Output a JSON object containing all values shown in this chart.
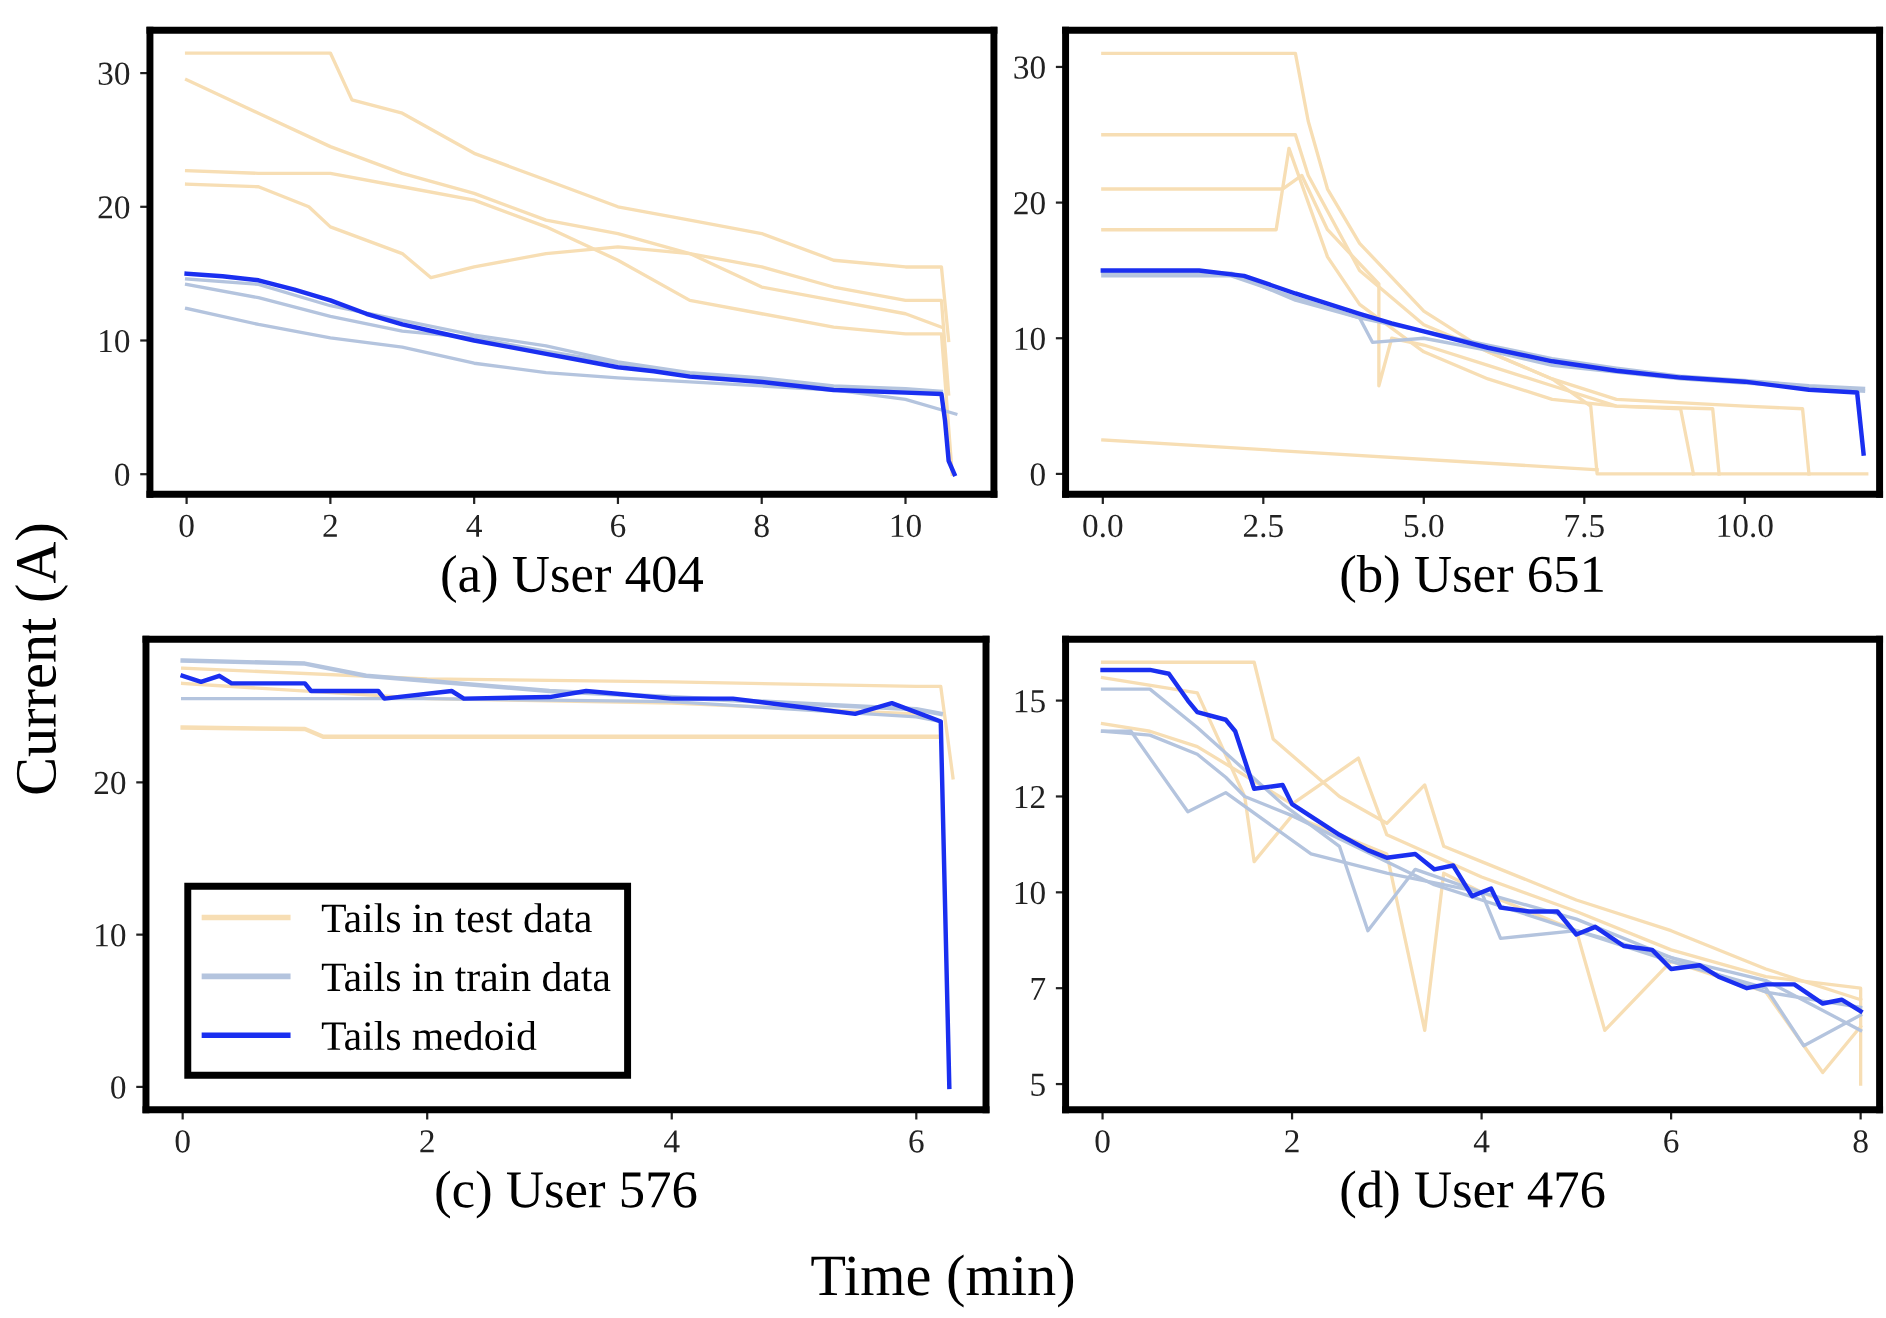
{
  "chart_data": [
    {
      "type": "line",
      "title": "(a) User 404",
      "ylabel": "Current (A)",
      "xlim": [
        -0.51,
        11.23
      ],
      "ylim": [
        -1.5,
        33.2
      ],
      "xticks": [
        0,
        2,
        4,
        6,
        8,
        10
      ],
      "yticks": [
        0,
        10,
        20,
        30
      ],
      "legend": false,
      "series": [
        {
          "color": "#f7deb4",
          "x": [
            0,
            2,
            2.3,
            3,
            4,
            5,
            6,
            7,
            8,
            9,
            10,
            10.5,
            10.6
          ],
          "values": [
            31.5,
            31.5,
            28,
            27,
            24,
            22,
            20,
            19,
            18,
            16,
            15.5,
            15.5,
            10
          ]
        },
        {
          "color": "#f7deb4",
          "x": [
            0,
            1,
            1.7,
            2,
            3,
            3.4,
            4,
            5,
            6,
            7,
            8,
            9,
            10,
            10.5
          ],
          "values": [
            21.7,
            21.5,
            20,
            18.5,
            16.5,
            14.7,
            15.5,
            16.5,
            17,
            16.5,
            14,
            13,
            12,
            11
          ]
        },
        {
          "color": "#f7deb4",
          "x": [
            0,
            1,
            2,
            3,
            4,
            5,
            6,
            7,
            8,
            9,
            10,
            10.5,
            10.6
          ],
          "values": [
            29.5,
            27,
            24.5,
            22.5,
            21,
            19,
            18,
            16.5,
            15.5,
            14,
            13,
            13,
            6
          ]
        },
        {
          "color": "#f7deb4",
          "x": [
            0,
            1,
            2,
            3,
            4,
            5,
            6,
            7,
            8,
            9,
            10,
            10.5,
            10.65
          ],
          "values": [
            22.7,
            22.5,
            22.5,
            21.5,
            20.5,
            18.5,
            16,
            13,
            12,
            11,
            10.5,
            10.5,
            0
          ]
        },
        {
          "color": "#b4c4de",
          "x": [
            0,
            1,
            2,
            3,
            4,
            5,
            6,
            7,
            8,
            9,
            10,
            10.7
          ],
          "values": [
            12.4,
            11.2,
            10.2,
            9.5,
            8.3,
            7.6,
            7.2,
            6.9,
            6.6,
            6.3,
            5.6,
            4.5
          ]
        },
        {
          "color": "#b4c4de",
          "x": [
            0,
            1,
            2,
            3,
            4,
            5,
            6,
            7,
            8,
            9,
            10,
            10.5
          ],
          "values": [
            14.2,
            13.2,
            11.8,
            10.7,
            10.2,
            9.2,
            8.3,
            7.5,
            7.0,
            6.4,
            6.2,
            6.1
          ]
        },
        {
          "color": "#b4c4de",
          "x": [
            0,
            1,
            2,
            3,
            4,
            5,
            6,
            7,
            8,
            9,
            10,
            10.5
          ],
          "values": [
            14.6,
            14.2,
            12.6,
            11.5,
            10.4,
            9.6,
            8.4,
            7.6,
            7.2,
            6.6,
            6.4,
            6.2
          ]
        },
        {
          "color": "#1a2ff0",
          "x": [
            0,
            0.5,
            1,
            1.5,
            2,
            2.5,
            3,
            3.5,
            4,
            4.5,
            5,
            5.5,
            6,
            6.5,
            7,
            7.5,
            8,
            8.5,
            9,
            9.5,
            10,
            10.5,
            10.55,
            10.6,
            10.68
          ],
          "values": [
            15,
            14.8,
            14.5,
            13.8,
            13,
            12,
            11.2,
            10.6,
            10,
            9.5,
            9,
            8.5,
            8,
            7.7,
            7.3,
            7.1,
            6.9,
            6.6,
            6.3,
            6.2,
            6.1,
            6,
            4,
            1,
            0
          ]
        }
      ]
    },
    {
      "type": "line",
      "title": "(b) User 651",
      "xlim": [
        -0.58,
        12.1
      ],
      "ylim": [
        -1.5,
        32.7
      ],
      "xticks": [
        {
          "value": 0,
          "label": "0.0"
        },
        {
          "value": 2.5,
          "label": "2.5"
        },
        {
          "value": 5,
          "label": "5.0"
        },
        {
          "value": 7.5,
          "label": "7.5"
        },
        {
          "value": 10,
          "label": "10.0"
        }
      ],
      "yticks": [
        0,
        10,
        20,
        30
      ],
      "legend": false,
      "series": [
        {
          "color": "#f7deb4",
          "x": [
            0,
            3,
            3.2,
            3.5,
            4,
            5,
            6,
            7,
            7.6,
            7.7,
            11.9
          ],
          "values": [
            31,
            31,
            26,
            21,
            17,
            12,
            9,
            7,
            5,
            0,
            0
          ]
        },
        {
          "color": "#f7deb4",
          "x": [
            0,
            2.7,
            2.9,
            3.5,
            4,
            5,
            6,
            7,
            8,
            9,
            9.2
          ],
          "values": [
            18,
            18,
            24,
            16,
            12.5,
            9,
            7,
            5.5,
            5,
            4.8,
            0
          ]
        },
        {
          "color": "#f7deb4",
          "x": [
            0,
            3,
            3.2,
            4,
            5,
            6,
            7,
            8,
            10,
            10.9,
            11
          ],
          "values": [
            25,
            25,
            22,
            15,
            11,
            9,
            7,
            5.5,
            5,
            4.8,
            0
          ]
        },
        {
          "color": "#f7deb4",
          "x": [
            0,
            7.7
          ],
          "values": [
            2.5,
            0.3
          ]
        },
        {
          "color": "#f7deb4",
          "x": [
            0,
            2.8,
            3.1,
            3.5,
            4.3,
            4.3,
            4.5,
            5,
            6,
            7,
            8,
            9.5,
            9.6
          ],
          "values": [
            21,
            21,
            22,
            18,
            14,
            6.5,
            10,
            9.5,
            8,
            6.5,
            5,
            4.8,
            0
          ]
        },
        {
          "color": "#b4c4de",
          "x": [
            0,
            2,
            3,
            4,
            5,
            6,
            7,
            8,
            9,
            10,
            11,
            11.85
          ],
          "values": [
            14.6,
            14.6,
            13,
            11.5,
            10.5,
            9.5,
            8.5,
            7.8,
            7.2,
            6.9,
            6.5,
            6.3
          ]
        },
        {
          "color": "#b4c4de",
          "x": [
            0,
            2,
            3,
            4,
            4.2,
            5,
            6,
            7,
            8,
            9,
            10,
            11.85
          ],
          "values": [
            14.8,
            14.8,
            12.8,
            11.5,
            9.7,
            10,
            9.1,
            8,
            7.5,
            7,
            6.7,
            6.1
          ]
        },
        {
          "color": "#1a2ff0",
          "x": [
            0,
            1,
            1.5,
            2.2,
            3,
            4,
            4.5,
            5,
            6,
            7,
            8,
            9,
            10,
            11,
            11.75,
            11.85
          ],
          "values": [
            15,
            15,
            15,
            14.6,
            13.3,
            11.8,
            11.1,
            10.5,
            9.3,
            8.3,
            7.6,
            7.1,
            6.8,
            6.2,
            6,
            1.5
          ]
        }
      ]
    },
    {
      "type": "line",
      "title": "(c) User 576",
      "xlim": [
        -0.3,
        6.57
      ],
      "ylim": [
        -1.5,
        29.4
      ],
      "xticks": [
        0,
        2,
        4,
        6
      ],
      "yticks": [
        0,
        10,
        20
      ],
      "legend": "bottom left",
      "series": [
        {
          "name": "Tails in test data",
          "color": "#f7deb4",
          "x": [
            0,
            1,
            1.15,
            4,
            6,
            6.2
          ],
          "values": [
            23.6,
            23.5,
            23,
            23,
            23,
            23
          ]
        },
        {
          "color": "#f7deb4",
          "x": [
            0,
            2,
            4,
            6,
            6.2,
            6.3
          ],
          "values": [
            27.5,
            26.8,
            26.6,
            26.3,
            26.3,
            20.3
          ]
        },
        {
          "color": "#f7deb4",
          "x": [
            0,
            2,
            4,
            6,
            6.2
          ],
          "values": [
            26.5,
            25.5,
            25.2,
            24.5,
            24
          ]
        },
        {
          "name": "Tails in train data",
          "color": "#b4c4de",
          "x": [
            0,
            1,
            1.5,
            3,
            5,
            6,
            6.2
          ],
          "values": [
            28,
            27.8,
            27,
            26,
            25.2,
            24.8,
            24.5
          ]
        },
        {
          "color": "#b4c4de",
          "x": [
            0,
            2,
            4,
            6,
            6.2
          ],
          "values": [
            25.5,
            25.5,
            25.3,
            24.3,
            24
          ]
        },
        {
          "name": "Tails medoid",
          "color": "#1a2ff0",
          "x": [
            0,
            0.15,
            0.3,
            0.4,
            1,
            1.05,
            1.6,
            1.65,
            2.2,
            2.3,
            3,
            3.3,
            4,
            4.5,
            5,
            5.5,
            5.8,
            6.1,
            6.2,
            6.27
          ],
          "values": [
            27,
            26.6,
            27,
            26.5,
            26.5,
            26,
            26,
            25.5,
            26,
            25.5,
            25.6,
            26,
            25.5,
            25.5,
            25,
            24.5,
            25.2,
            24.3,
            24,
            0
          ]
        }
      ]
    },
    {
      "type": "line",
      "title": "(d) User 476",
      "xlabel": "Time (min)",
      "xlim": [
        -0.39,
        8.2
      ],
      "ylim": [
        4.33,
        16.6
      ],
      "xticks": [
        0,
        2,
        4,
        6,
        8
      ],
      "yticks": [
        5,
        {
          "value": 7.5,
          "label": "7"
        },
        10,
        {
          "value": 12.5,
          "label": "12"
        },
        15
      ],
      "legend": false,
      "series": [
        {
          "color": "#f7deb4",
          "x": [
            0,
            1.6,
            1.8,
            2.5,
            3,
            3.4,
            3.6,
            4,
            5,
            6,
            7,
            8
          ],
          "values": [
            16,
            16,
            14,
            12.5,
            11.8,
            12.8,
            11.2,
            10.8,
            9.8,
            9,
            8,
            7.2
          ]
        },
        {
          "color": "#f7deb4",
          "x": [
            0,
            1,
            1.5,
            1.6,
            2,
            3,
            3.4,
            3.6,
            4,
            5,
            5.3,
            6,
            7,
            7.6,
            8
          ],
          "values": [
            15.6,
            15.2,
            12.5,
            10.8,
            12,
            11,
            6.4,
            10.5,
            10,
            9,
            6.4,
            8.2,
            7.4,
            5.3,
            6.5
          ]
        },
        {
          "color": "#f7deb4",
          "x": [
            0,
            0.5,
            1,
            2,
            2.7,
            3,
            4,
            5,
            6,
            7,
            8,
            8
          ],
          "values": [
            14.4,
            14.2,
            13.8,
            12.3,
            13.5,
            11.5,
            10.4,
            9.5,
            8.5,
            7.8,
            7.5,
            5
          ]
        },
        {
          "color": "#b4c4de",
          "x": [
            0,
            0.5,
            1,
            1.3,
            1.5,
            2,
            2.5,
            3,
            3.5,
            4,
            5,
            6,
            7,
            8
          ],
          "values": [
            14.2,
            14.1,
            13.6,
            13,
            12.5,
            12,
            11.4,
            10.8,
            10.2,
            9.8,
            9,
            8.3,
            7.7,
            6.4
          ]
        },
        {
          "color": "#b4c4de",
          "x": [
            0,
            0.5,
            1,
            1.9,
            2.5,
            2.8,
            3.3,
            4,
            4.2,
            5,
            6,
            7,
            7.4,
            8
          ],
          "values": [
            15.3,
            15.3,
            14.3,
            12.3,
            11.2,
            9,
            10.6,
            10,
            8.8,
            9,
            8.2,
            7.5,
            6,
            6.8
          ]
        },
        {
          "color": "#b4c4de",
          "x": [
            0,
            0.3,
            0.9,
            1.3,
            2.2,
            3,
            4,
            5,
            6,
            7,
            8
          ],
          "values": [
            14.2,
            14.2,
            12.1,
            12.6,
            11.0,
            10.5,
            10,
            9.3,
            8.3,
            7.4,
            7
          ]
        },
        {
          "color": "#1a2ff0",
          "x": [
            0,
            0.5,
            0.7,
            0.9,
            1,
            1.3,
            1.4,
            1.6,
            1.9,
            2,
            2.5,
            2.8,
            3,
            3.3,
            3.5,
            3.7,
            3.9,
            4.1,
            4.2,
            4.5,
            4.8,
            5,
            5.2,
            5.5,
            5.8,
            6,
            6.3,
            6.5,
            6.8,
            7,
            7.3,
            7.6,
            7.8,
            8
          ],
          "values": [
            15.8,
            15.8,
            15.7,
            15.0,
            14.7,
            14.5,
            14.2,
            12.7,
            12.8,
            12.3,
            11.5,
            11.1,
            10.9,
            11.0,
            10.6,
            10.7,
            9.9,
            10.1,
            9.6,
            9.5,
            9.5,
            8.9,
            9.1,
            8.6,
            8.5,
            8.0,
            8.1,
            7.8,
            7.5,
            7.6,
            7.6,
            7.1,
            7.2,
            6.9
          ]
        }
      ]
    }
  ]
}
